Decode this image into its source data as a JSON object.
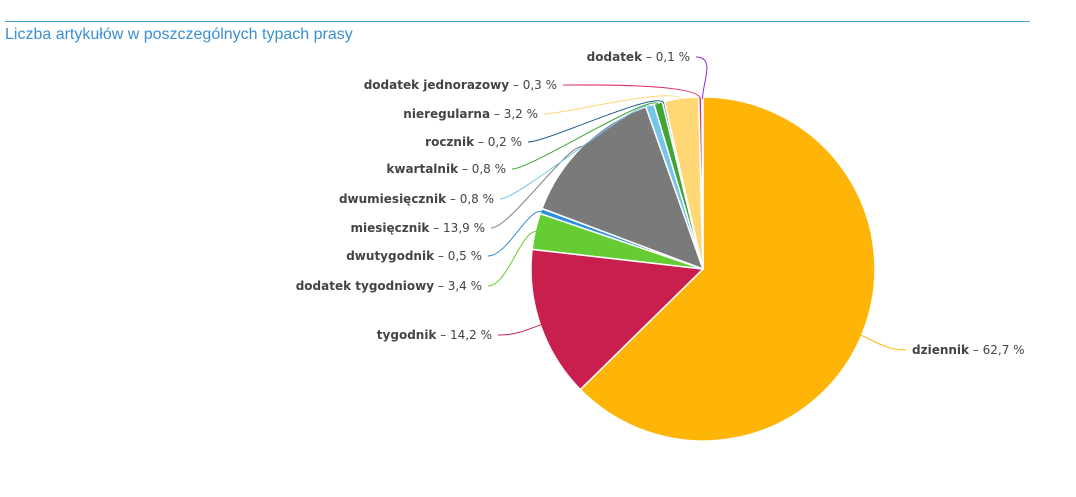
{
  "chart_data": {
    "type": "pie",
    "title": "Liczba artykułów w poszczególnych typach prasy",
    "start_angle_deg": -90,
    "slices": [
      {
        "name": "dziennik",
        "value": 62.7,
        "label": "62,7 %",
        "color": "#FFB508"
      },
      {
        "name": "tygodnik",
        "value": 14.2,
        "label": "14,2 %",
        "color": "#C81F4E"
      },
      {
        "name": "dodatek tygodniowy",
        "value": 3.4,
        "label": "3,4 %",
        "color": "#66CC33"
      },
      {
        "name": "dwutygodnik",
        "value": 0.5,
        "label": "0,5 %",
        "color": "#2F8FD8"
      },
      {
        "name": "miesięcznik",
        "value": 13.9,
        "label": "13,9 %",
        "color": "#7A7A7A"
      },
      {
        "name": "dwumiesięcznik",
        "value": 0.8,
        "label": "0,8 %",
        "color": "#76C4E8"
      },
      {
        "name": "kwartalnik",
        "value": 0.8,
        "label": "0,8 %",
        "color": "#3FA535"
      },
      {
        "name": "rocznik",
        "value": 0.2,
        "label": "0,2 %",
        "color": "#1F5E8E"
      },
      {
        "name": "nieregularna",
        "value": 3.2,
        "label": "3,2 %",
        "color": "#FFD775"
      },
      {
        "name": "dodatek jednorazowy",
        "value": 0.3,
        "label": "0,3 %",
        "color": "#E0306A"
      },
      {
        "name": "dodatek",
        "value": 0.1,
        "label": "0,1 %",
        "color": "#8A2BE2"
      }
    ]
  }
}
